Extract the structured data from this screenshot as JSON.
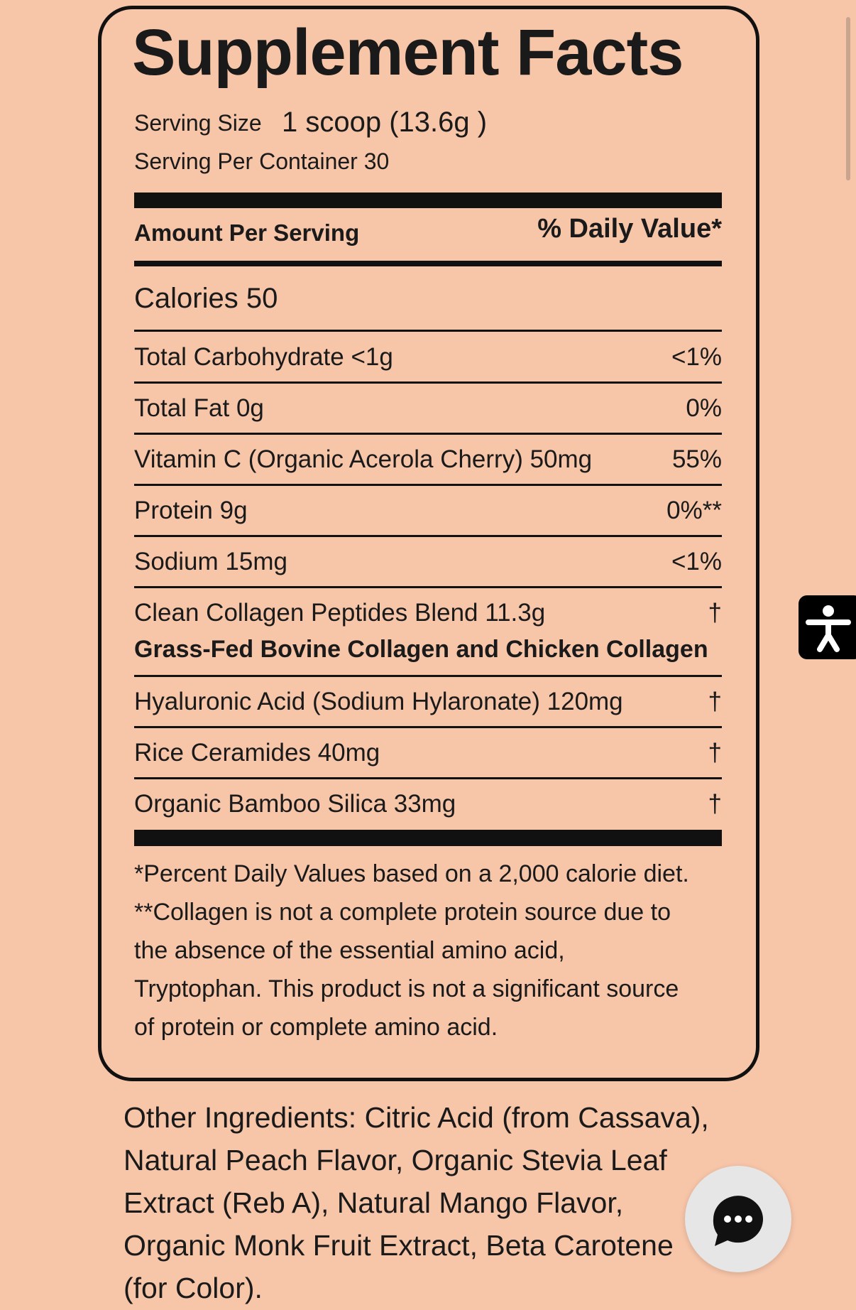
{
  "header": {
    "title": "Supplement Facts",
    "serving_size_label": "Serving Size",
    "serving_size_value": "1 scoop (13.6g )",
    "servings_per_container": "Serving Per Container 30"
  },
  "columns": {
    "amount": "Amount Per Serving",
    "daily_value": "% Daily Value*"
  },
  "calories": "Calories 50",
  "rows": [
    {
      "name": "Total Carbohydrate <1g",
      "dv": "<1%"
    },
    {
      "name": "Total Fat 0g",
      "dv": "0%"
    },
    {
      "name": "Vitamin C (Organic Acerola Cherry) 50mg",
      "dv": "55%"
    },
    {
      "name": "Protein 9g",
      "dv": "0%**"
    },
    {
      "name": "Sodium 15mg",
      "dv": "<1%"
    },
    {
      "name": "Clean Collagen Peptides Blend 11.3g",
      "dv": "†",
      "sub": "Grass-Fed Bovine Collagen and Chicken Collagen"
    },
    {
      "name": "Hyaluronic Acid (Sodium Hylaronate) 120mg",
      "dv": "†"
    },
    {
      "name": "Rice Ceramides 40mg",
      "dv": "†"
    },
    {
      "name": "Organic Bamboo Silica 33mg",
      "dv": "†"
    }
  ],
  "footnotes": [
    "*Percent Daily Values based on a 2,000 calorie diet.",
    "**Collagen is not a complete protein source due to",
    "the absence of the essential amino acid,",
    "Tryptophan. This product is not a significant source",
    "of protein or complete amino acid."
  ],
  "other_ingredients": [
    "Other Ingredients: Citric Acid (from Cassava),",
    "Natural Peach Flavor, Organic Stevia Leaf",
    "Extract (Reb A), Natural Mango Flavor,",
    "Organic Monk Fruit Extract, Beta Carotene",
    "(for Color)."
  ]
}
